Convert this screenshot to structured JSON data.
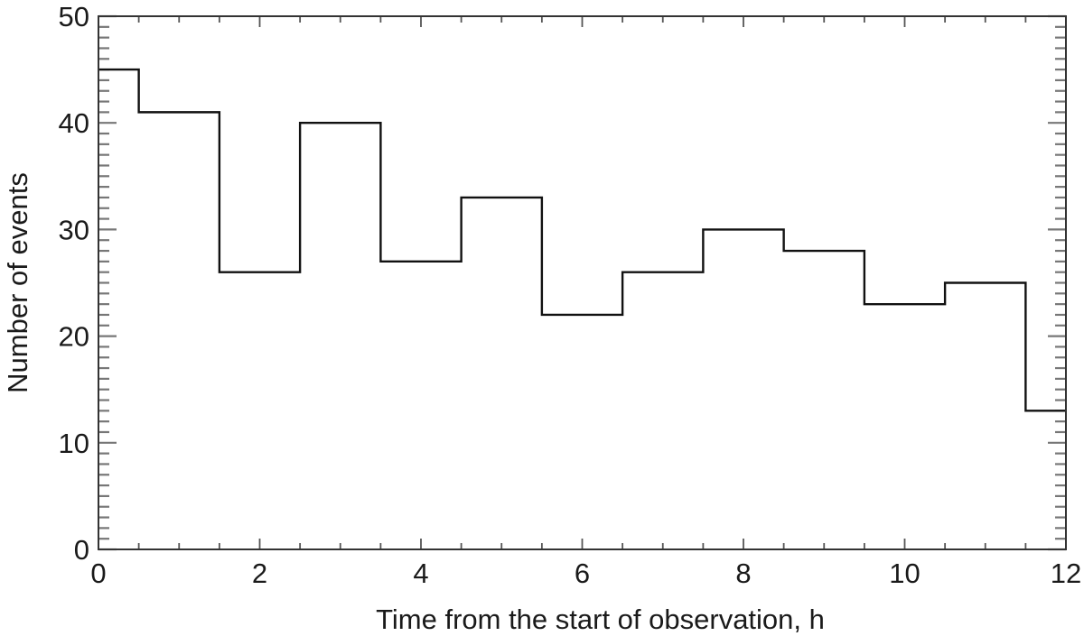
{
  "chart_data": {
    "type": "bar",
    "style": "step-histogram",
    "title": "",
    "xlabel": "Time from the start of observation, h",
    "ylabel": "Number of events",
    "xlim": [
      0,
      12
    ],
    "ylim": [
      0,
      50
    ],
    "xticks": [
      0,
      2,
      4,
      6,
      8,
      10,
      12
    ],
    "yticks": [
      0,
      10,
      20,
      30,
      40,
      50
    ],
    "x_minor_step": 0.5,
    "y_minor_step": 1,
    "grid": false,
    "legend": null,
    "bin_edges": [
      0,
      0.5,
      1.5,
      2.5,
      3.5,
      4.5,
      5.5,
      6.5,
      7.5,
      8.5,
      9.5,
      10.5,
      11.5,
      12
    ],
    "categories": [
      "0-0.5",
      "0.5-1.5",
      "1.5-2.5",
      "2.5-3.5",
      "3.5-4.5",
      "4.5-5.5",
      "5.5-6.5",
      "6.5-7.5",
      "7.5-8.5",
      "8.5-9.5",
      "9.5-10.5",
      "10.5-11.5",
      "11.5-12"
    ],
    "values": [
      45,
      41,
      26,
      40,
      27,
      33,
      22,
      26,
      30,
      28,
      23,
      25,
      13
    ],
    "line_color": "#111111"
  }
}
